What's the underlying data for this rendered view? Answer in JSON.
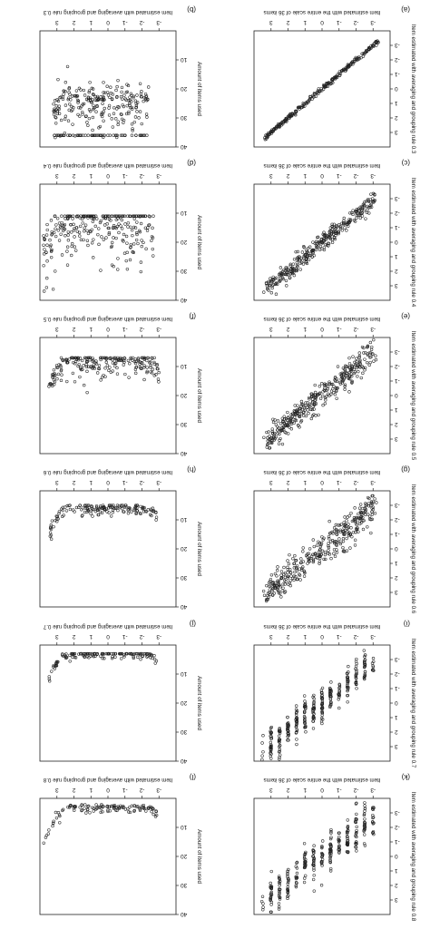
{
  "figure": {
    "orientation": "rotated-180",
    "ink_color": "#222222"
  },
  "chart_data": [
    {
      "id": "a",
      "panel_label": "(a)",
      "type": "scatter",
      "xlabel": "Item estimated with the entire scale of 36 items",
      "ylabel": "Item estimated with averaging and grouping rule 0.3",
      "xlim": [
        -4,
        4
      ],
      "ylim": [
        -4,
        4
      ],
      "x_ticks": [
        -3,
        -2,
        -1,
        0,
        1,
        2,
        3
      ],
      "y_ticks": [
        -3,
        -2,
        -1,
        0,
        1,
        2,
        3
      ],
      "trend": {
        "slope": 1.0,
        "intercept": 0.0,
        "spread": 0.08,
        "x_range": [
          -3.3,
          3.4
        ],
        "n_points": 260
      }
    },
    {
      "id": "c",
      "panel_label": "(c)",
      "type": "scatter",
      "xlabel": "Item estimated with the entire scale of 36 items",
      "ylabel": "Item estimated with averaging and grouping rule 0.4",
      "xlim": [
        -4,
        4
      ],
      "ylim": [
        -4,
        4
      ],
      "x_ticks": [
        -3,
        -2,
        -1,
        0,
        1,
        2,
        3
      ],
      "y_ticks": [
        -3,
        -2,
        -1,
        0,
        1,
        2,
        3
      ],
      "trend": {
        "slope": 0.98,
        "intercept": 0.0,
        "spread": 0.3,
        "x_range": [
          -3.1,
          3.3
        ],
        "n_points": 320
      }
    },
    {
      "id": "e",
      "panel_label": "(e)",
      "type": "scatter",
      "xlabel": "Item estimated with the entire scale of 36 items",
      "ylabel": "Item estimated with averaging and grouping rule 0.5",
      "xlim": [
        -4,
        4
      ],
      "ylim": [
        -4,
        4
      ],
      "x_ticks": [
        -3,
        -2,
        -1,
        0,
        1,
        2,
        3
      ],
      "y_ticks": [
        -3,
        -2,
        -1,
        0,
        1,
        2,
        3
      ],
      "trend": {
        "slope": 0.95,
        "intercept": 0.0,
        "spread": 0.45,
        "x_range": [
          -3.1,
          3.3
        ],
        "n_points": 340
      }
    },
    {
      "id": "g",
      "panel_label": "(g)",
      "type": "scatter",
      "xlabel": "Item estimated with the entire scale of 36 items",
      "ylabel": "Item estimated with averaging and grouping rule 0.6",
      "xlim": [
        -4,
        4
      ],
      "ylim": [
        -4,
        4
      ],
      "x_ticks": [
        -3,
        -2,
        -1,
        0,
        1,
        2,
        3
      ],
      "y_ticks": [
        -3,
        -2,
        -1,
        0,
        1,
        2,
        3
      ],
      "trend": {
        "slope": 0.92,
        "intercept": 0.0,
        "spread": 0.55,
        "x_range": [
          -3.1,
          3.3
        ],
        "n_points": 340
      }
    },
    {
      "id": "i",
      "panel_label": "(i)",
      "type": "scatter",
      "xlabel": "Item estimated with the entire scale of 36 items",
      "ylabel": "Item estimated with averaging and grouping rule 0.7",
      "xlim": [
        -4,
        4
      ],
      "ylim": [
        -4,
        4
      ],
      "x_ticks": [
        -3,
        -2,
        -1,
        0,
        1,
        2,
        3
      ],
      "y_ticks": [
        -3,
        -2,
        -1,
        0,
        1,
        2,
        3
      ],
      "trend": {
        "slope": 0.9,
        "intercept": 0.0,
        "spread": 0.6,
        "x_range": [
          -3.0,
          3.3
        ],
        "n_points": 320,
        "x_grouped": true
      }
    },
    {
      "id": "k",
      "panel_label": "(k)",
      "type": "scatter",
      "xlabel": "Item estimated with the entire scale of 36 items",
      "ylabel": "Item estimated with averaging and grouping rule 0.8",
      "xlim": [
        -4,
        4
      ],
      "ylim": [
        -4,
        4
      ],
      "x_ticks": [
        -3,
        -2,
        -1,
        0,
        1,
        2,
        3
      ],
      "y_ticks": [
        -3,
        -2,
        -1,
        0,
        1,
        2,
        3
      ],
      "trend": {
        "slope": 0.85,
        "intercept": 0.0,
        "spread": 0.7,
        "x_range": [
          -3.0,
          3.3
        ],
        "n_points": 300,
        "x_grouped": true
      }
    },
    {
      "id": "b",
      "panel_label": "(b)",
      "type": "scatter",
      "xlabel": "Item estimated with averaging and grouping rule 0.3",
      "ylabel": "Amount of items used",
      "xlim": [
        -4,
        4
      ],
      "ylim": [
        0,
        40
      ],
      "x_ticks": [
        -3,
        -2,
        -1,
        0,
        1,
        2,
        3
      ],
      "y_ticks": [
        10,
        20,
        30,
        40
      ],
      "items": {
        "base": 24,
        "spread": 6,
        "floor": 36,
        "x_range": [
          -2.4,
          3.2
        ],
        "n_points": 300
      }
    },
    {
      "id": "d",
      "panel_label": "(d)",
      "type": "scatter",
      "xlabel": "Item estimated with averaging and grouping rule 0.4",
      "ylabel": "Amount of items used",
      "xlim": [
        -4,
        4
      ],
      "ylim": [
        0,
        40
      ],
      "x_ticks": [
        -3,
        -2,
        -1,
        0,
        1,
        2,
        3
      ],
      "y_ticks": [
        10,
        20,
        30,
        40
      ],
      "items": {
        "base": 12,
        "spread": 8,
        "floor": 11,
        "x_range": [
          -2.7,
          3.8
        ],
        "n_points": 280
      }
    },
    {
      "id": "f",
      "panel_label": "(f)",
      "type": "scatter",
      "xlabel": "Item estimated with averaging and grouping rule 0.5",
      "ylabel": "Amount of items used",
      "xlim": [
        -4,
        4
      ],
      "ylim": [
        0,
        40
      ],
      "x_ticks": [
        -3,
        -2,
        -1,
        0,
        1,
        2,
        3
      ],
      "y_ticks": [
        10,
        20,
        30,
        40
      ],
      "items": {
        "base": 8,
        "spread": 3,
        "floor": 7,
        "x_range": [
          -3.0,
          3.5
        ],
        "n_points": 220
      }
    },
    {
      "id": "h",
      "panel_label": "(h)",
      "type": "scatter",
      "xlabel": "Item estimated with averaging and grouping rule 0.6",
      "ylabel": "Amount of items used",
      "xlim": [
        -4,
        4
      ],
      "ylim": [
        0,
        40
      ],
      "x_ticks": [
        -3,
        -2,
        -1,
        0,
        1,
        2,
        3
      ],
      "y_ticks": [
        10,
        20,
        30,
        40
      ],
      "items": {
        "base": 6,
        "spread": 1.5,
        "floor": 5,
        "x_range": [
          -2.9,
          3.4
        ],
        "n_points": 160
      }
    },
    {
      "id": "j",
      "panel_label": "(j)",
      "type": "scatter",
      "xlabel": "Item estimated with averaging and grouping rule 0.7",
      "ylabel": "Amount of items used",
      "xlim": [
        -4,
        4
      ],
      "ylim": [
        0,
        40
      ],
      "x_ticks": [
        -3,
        -2,
        -1,
        0,
        1,
        2,
        3
      ],
      "y_ticks": [
        10,
        20,
        30,
        40
      ],
      "items": {
        "base": 3,
        "spread": 1,
        "floor": 3,
        "x_range": [
          -2.9,
          3.5
        ],
        "n_points": 140
      }
    },
    {
      "id": "l",
      "panel_label": "(l)",
      "type": "scatter",
      "xlabel": "Item estimated with averaging and grouping rule 0.8",
      "ylabel": "Amount of items used",
      "xlim": [
        -4,
        4
      ],
      "ylim": [
        0,
        40
      ],
      "x_ticks": [
        -3,
        -2,
        -1,
        0,
        1,
        2,
        3
      ],
      "y_ticks": [
        10,
        20,
        30,
        40
      ],
      "items": {
        "base": 3,
        "spread": 1,
        "floor": 2,
        "x_range": [
          -2.9,
          3.8
        ],
        "n_points": 120
      }
    }
  ]
}
